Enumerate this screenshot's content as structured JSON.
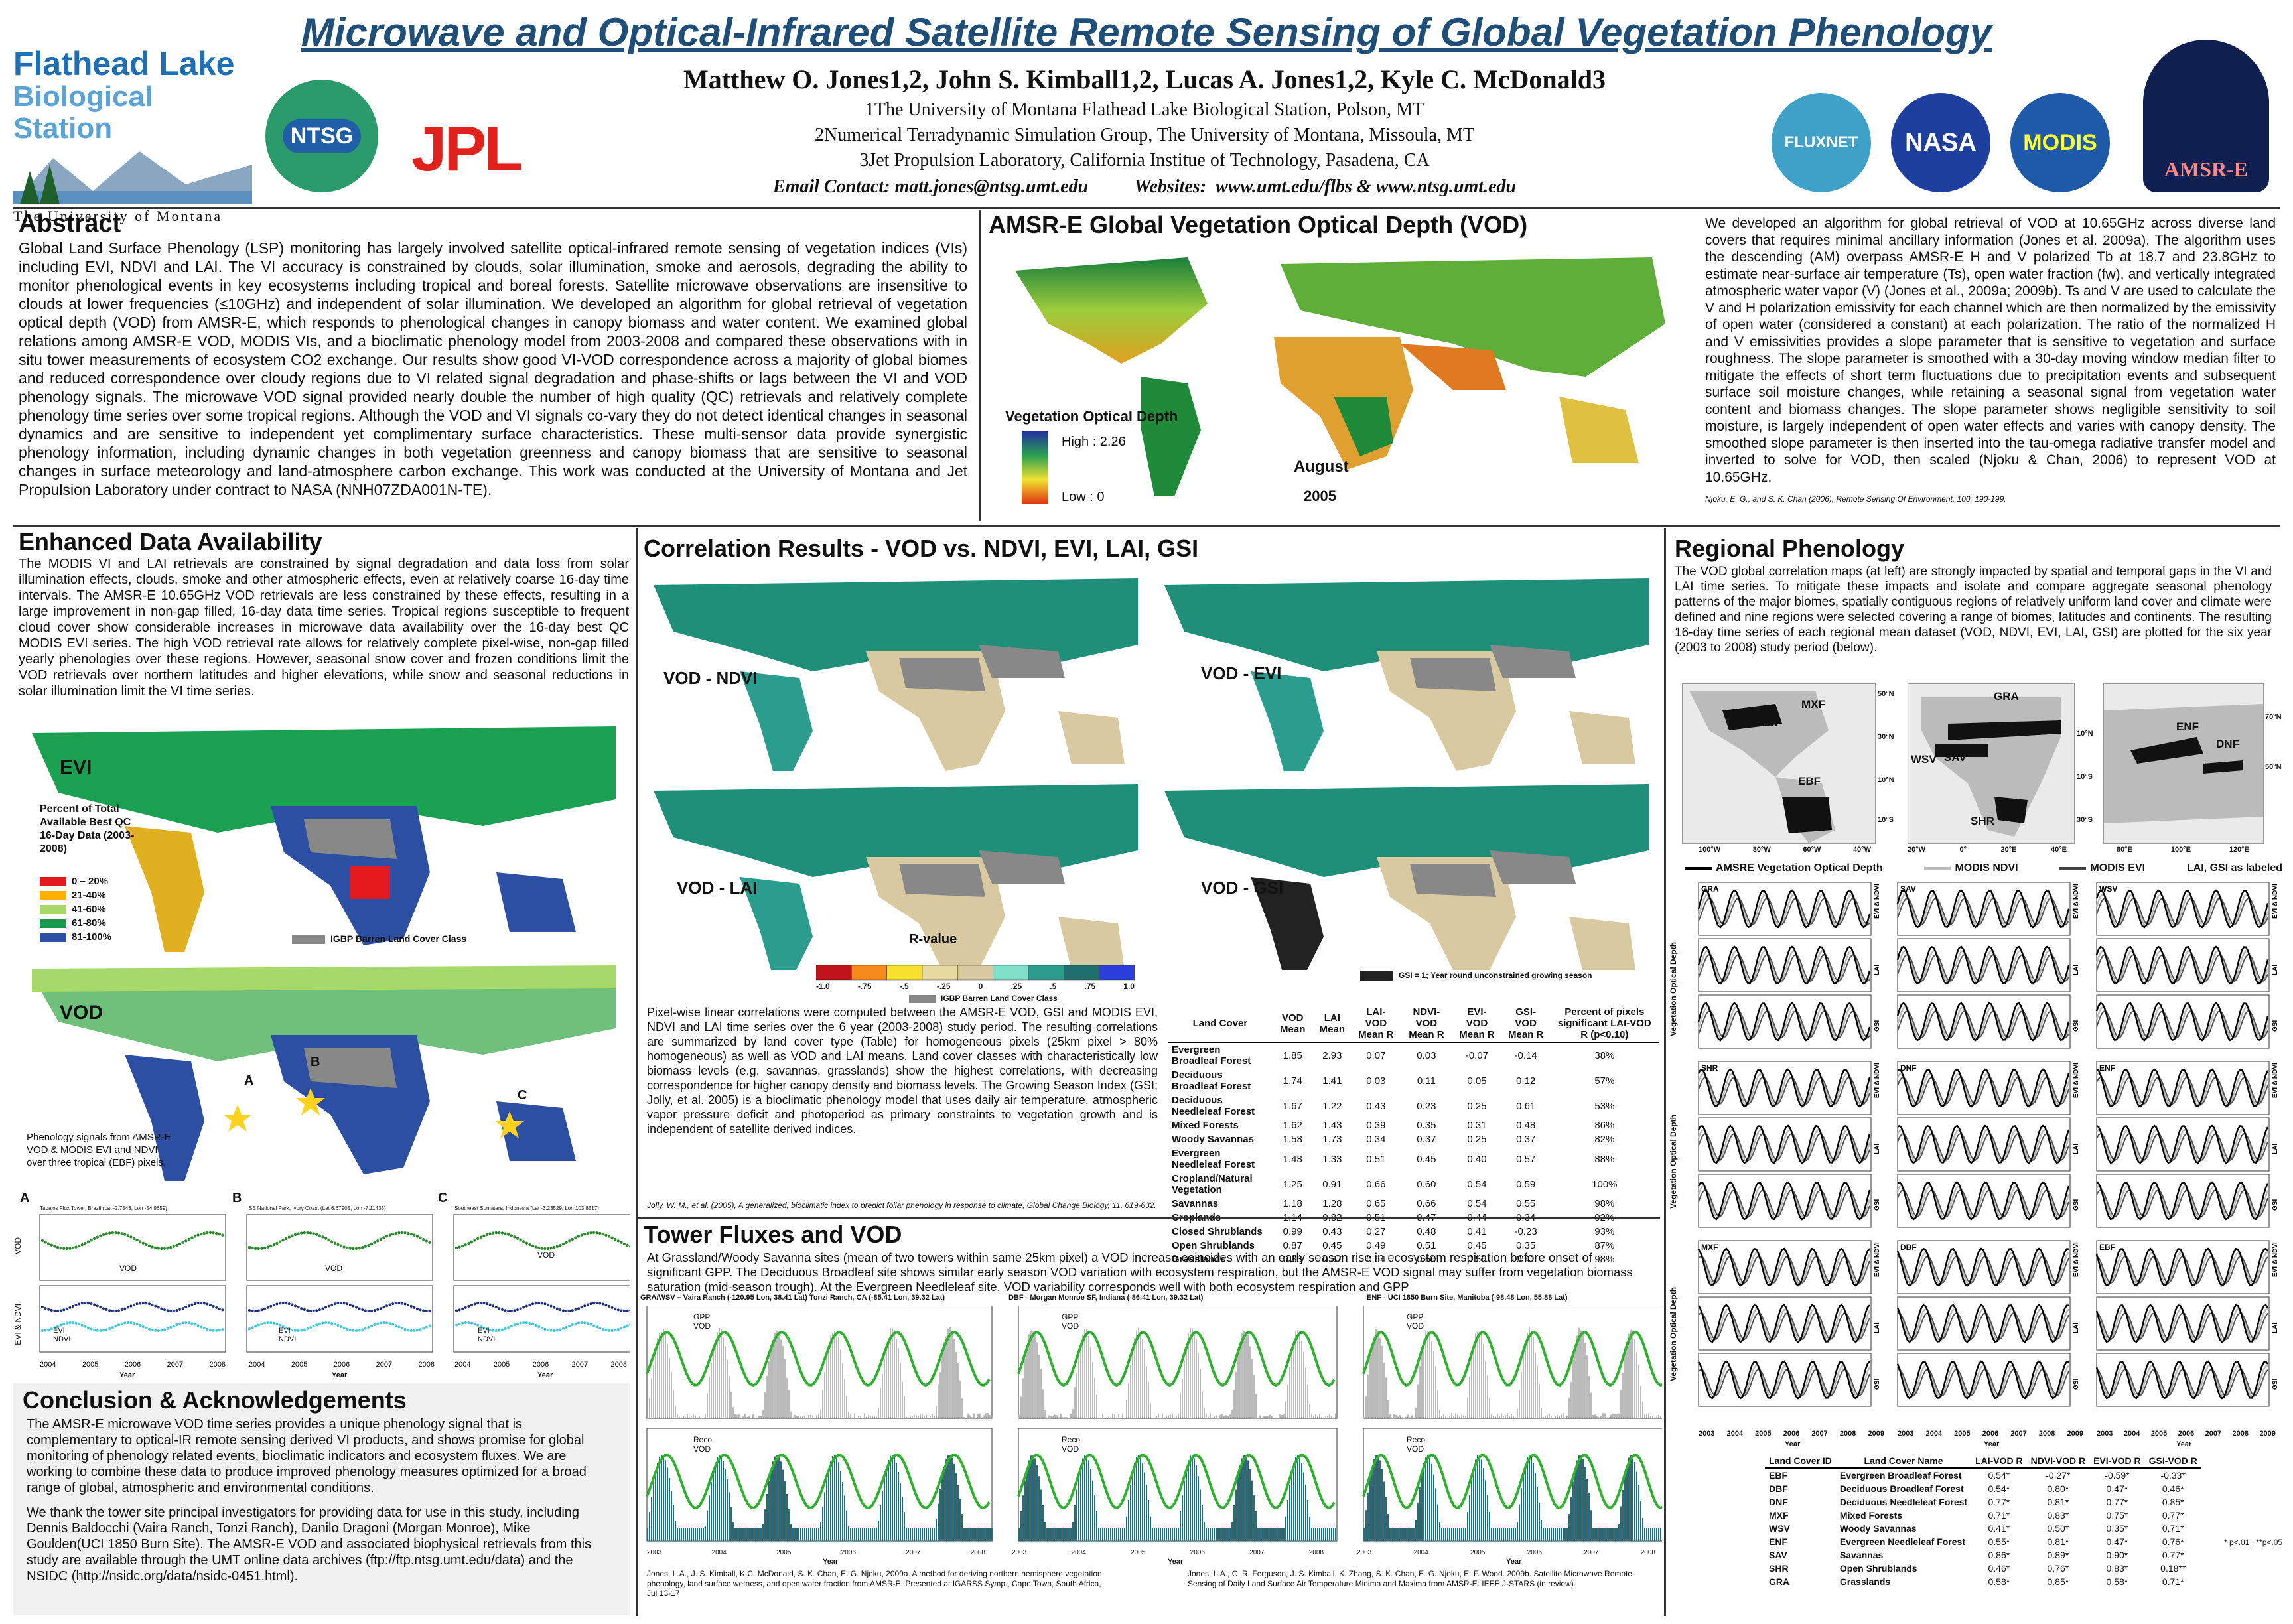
{
  "header": {
    "title": "Microwave and Optical-Infrared Satellite Remote Sensing of Global Vegetation Phenology",
    "authors": "Matthew O. Jones1,2, John S. Kimball1,2, Lucas A. Jones1,2, Kyle C. McDonald3",
    "affil1": "1The University of Montana Flathead Lake Biological Station, Polson, MT",
    "affil2": "2Numerical Terradynamic Simulation Group, The University of Montana, Missoula, MT",
    "affil3": "3Jet Propulsion Laboratory, California Institue of Technology, Pasadena, CA",
    "contact": "Email Contact: matt.jones@ntsg.umt.edu          Websites:  www.umt.edu/flbs & www.ntsg.umt.edu"
  },
  "logos": {
    "flathead_line1": "Flathead Lake",
    "flathead_line2": "Biological Station",
    "flathead_line3": "The University of Montana",
    "ntsg": "NTSG",
    "jpl": "JPL",
    "fluxnet": "FLUXNET",
    "nasa": "NASA",
    "modis": "MODIS",
    "amsre": "AMSR-E"
  },
  "abstract": {
    "title": "Abstract",
    "text": "Global Land Surface Phenology (LSP) monitoring has largely involved satellite optical-infrared remote sensing of vegetation indices (VIs) including EVI, NDVI and LAI. The VI accuracy is constrained by clouds, solar illumination, smoke and aerosols, degrading the ability to monitor phenological events in key ecosystems including tropical and boreal forests. Satellite microwave observations are insensitive to clouds at lower frequencies (≤10GHz) and independent of solar illumination. We developed an algorithm for global retrieval of vegetation optical depth (VOD) from AMSR-E, which responds to phenological changes in canopy biomass and water content. We examined global relations among AMSR-E VOD, MODIS VIs, and a bioclimatic phenology model from 2003-2008 and compared these observations with in situ tower measurements of ecosystem CO2 exchange. Our results show good VI-VOD correspondence across a majority of global biomes and reduced correspondence over cloudy regions due to VI related signal degradation and phase-shifts or lags between the VI and VOD phenology signals. The microwave VOD signal provided nearly double the number of high quality (QC) retrievals and relatively complete phenology time series over some tropical regions. Although the VOD and VI signals co-vary they do not detect identical changes in seasonal dynamics and are sensitive to independent yet complimentary surface characteristics. These multi-sensor data provide synergistic phenology information, including dynamic changes in both vegetation greenness and canopy biomass that are sensitive to seasonal changes in surface meteorology and land-atmosphere carbon exchange. This work was conducted at the University of Montana and Jet Propulsion Laboratory under contract to NASA (NNH07ZDA001N-TE)."
  },
  "vod_map": {
    "title": "AMSR-E Global Vegetation Optical Depth (VOD)",
    "legend_title": "Vegetation Optical Depth",
    "high": "High : 2.26",
    "low": "Low : 0",
    "month": "August",
    "year": "2005"
  },
  "algorithm": {
    "text": "We developed an algorithm for global retrieval of VOD at 10.65GHz across diverse land covers that requires minimal ancillary information (Jones et al. 2009a). The algorithm uses the descending (AM) overpass AMSR-E H and V polarized Tb at 18.7 and 23.8GHz to estimate near-surface air temperature (Ts), open water fraction (fw), and vertically integrated atmospheric water vapor (V) (Jones et al., 2009a; 2009b). Ts and V are used to calculate the V and H polarization emissivity for each channel which are then normalized by the emissivity of open water (considered a constant) at each polarization. The ratio of the normalized H and V emissivities provides a slope parameter that is sensitive to vegetation and surface roughness. The slope parameter is smoothed with a 30-day moving window median filter to mitigate the effects of short term fluctuations due to precipitation events and subsequent surface soil moisture changes, while retaining a seasonal signal from vegetation water content and biomass changes. The slope parameter shows negligible sensitivity to soil moisture, is largely independent of open water effects and varies with canopy density. The smoothed slope parameter is then inserted into the tau-omega radiative transfer model and inverted to solve for VOD, then scaled (Njoku & Chan, 2006) to represent VOD at 10.65GHz.",
    "ref": "Njoku, E. G., and S. K. Chan (2006), Remote Sensing Of Environment, 100, 190-199."
  },
  "enhanced": {
    "title": "Enhanced Data Availability",
    "text": "The MODIS VI and LAI retrievals are constrained by signal degradation and data loss from solar illumination effects, clouds, smoke and other atmospheric effects, even at relatively coarse 16-day time intervals. The AMSR-E 10.65GHz VOD retrievals are less constrained by these effects, resulting in a large improvement in non-gap filled, 16-day data time series. Tropical regions susceptible to frequent cloud cover show considerable increases in microwave data availability over the 16-day best QC MODIS EVI series. The high VOD retrieval rate allows for relatively complete pixel-wise, non-gap filled yearly phenologies over these regions. However, seasonal snow cover and frozen conditions limit the VOD retrievals over northern latitudes and higher elevations, while snow and seasonal reductions in solar illumination limit the VI time series.",
    "evi_label": "EVI",
    "vod_label": "VOD",
    "legend_title": "Percent of Total Available Best QC 16-Day Data (2003-2008)",
    "legend_items": [
      {
        "label": "0 – 20%",
        "color": "#e41a1c"
      },
      {
        "label": "21-40%",
        "color": "#ffb000"
      },
      {
        "label": "41-60%",
        "color": "#a6d96a"
      },
      {
        "label": "61-80%",
        "color": "#1a9850"
      },
      {
        "label": "81-100%",
        "color": "#2c4fa3"
      }
    ],
    "barren": "IGBP Barren Land Cover Class",
    "pheno_note": "Phenology signals from AMSR-E VOD & MODIS EVI and NDVI over three tropical (EBF) pixels.",
    "site_a": "A",
    "site_b": "B",
    "site_c": "C",
    "site_a_title": "Tapajos Flux Tower, Brazil (Lat -2.7543, Lon -54.9659)",
    "site_b_title": "SE National Park, Ivory Coast (Lat 6.67905, Lon -7.11433)",
    "site_c_title": "Southeast Sumatera, Indonesia (Lat -3.23529, Lon 103.8517)",
    "years": [
      "2004",
      "2005",
      "2006",
      "2007",
      "2008"
    ],
    "year_label": "Year",
    "vod_axis": "VOD",
    "vi_axis": "EVI & NDVI",
    "vod_series": "VOD",
    "evi_series": "EVI",
    "ndvi_series": "NDVI"
  },
  "correlation": {
    "title": "Correlation Results - VOD vs. NDVI, EVI, LAI, GSI",
    "labels": [
      "VOD - NDVI",
      "VOD - EVI",
      "VOD - LAI",
      "VOD - GSI"
    ],
    "rvalue": "R-value",
    "ticks": [
      "-1.0",
      "-.75",
      "-.5",
      "-.25",
      "0",
      ".25",
      ".5",
      ".75",
      "1.0"
    ],
    "colors": [
      "#c0141a",
      "#f78a1d",
      "#f7e12e",
      "#e8d9a0",
      "#d8c9a0",
      "#7ee0c8",
      "#2a9d8f",
      "#1f6f6f",
      "#2b3fdc"
    ],
    "barren": "IGBP Barren Land Cover Class",
    "gsi_note": "GSI = 1; Year round unconstrained growing season",
    "text": "Pixel-wise linear correlations were computed between the AMSR-E VOD, GSI and MODIS EVI, NDVI and LAI time series over the 6 year (2003-2008) study period. The resulting correlations are summarized by land cover type (Table) for homogeneous pixels (25km pixel > 80% homogeneous) as well as VOD and LAI means. Land cover classes with characteristically low biomass levels (e.g. savannas, grasslands) show the highest correlations, with decreasing correspondence for higher canopy density and biomass levels. The Growing Season Index (GSI; Jolly, et al. 2005) is a bioclimatic phenology model that uses daily air temperature, atmospheric vapor pressure deficit and photoperiod as primary constraints to vegetation growth and is independent of satellite derived indices.",
    "ref": "Jolly, W. M., et al. (2005), A generalized, bioclimatic index to predict foliar phenology in response to climate, Global Change Biology, 11, 619-632.",
    "table_headers": [
      "Land Cover",
      "VOD Mean",
      "LAI Mean",
      "LAI-VOD Mean R",
      "NDVI-VOD Mean R",
      "EVI-VOD Mean R",
      "GSI-VOD Mean R",
      "Percent of pixels significant LAI-VOD R (p<0.10)"
    ],
    "table_rows": [
      [
        "Evergreen Broadleaf Forest",
        "1.85",
        "2.93",
        "0.07",
        "0.03",
        "-0.07",
        "-0.14",
        "38%"
      ],
      [
        "Deciduous Broadleaf Forest",
        "1.74",
        "1.41",
        "0.03",
        "0.11",
        "0.05",
        "0.12",
        "57%"
      ],
      [
        "Deciduous Needleleaf Forest",
        "1.67",
        "1.22",
        "0.43",
        "0.23",
        "0.25",
        "0.61",
        "53%"
      ],
      [
        "Mixed Forests",
        "1.62",
        "1.43",
        "0.39",
        "0.35",
        "0.31",
        "0.48",
        "86%"
      ],
      [
        "Woody Savannas",
        "1.58",
        "1.73",
        "0.34",
        "0.37",
        "0.25",
        "0.37",
        "82%"
      ],
      [
        "Evergreen Needleleaf Forest",
        "1.48",
        "1.33",
        "0.51",
        "0.45",
        "0.40",
        "0.57",
        "88%"
      ],
      [
        "Cropland/Natural Vegetation",
        "1.25",
        "0.91",
        "0.66",
        "0.60",
        "0.54",
        "0.59",
        "100%"
      ],
      [
        "Savannas",
        "1.18",
        "1.28",
        "0.65",
        "0.66",
        "0.54",
        "0.55",
        "98%"
      ],
      [
        "Croplands",
        "1.14",
        "0.82",
        "0.51",
        "0.47",
        "0.44",
        "0.34",
        "92%"
      ],
      [
        "Closed Shrublands",
        "0.99",
        "0.43",
        "0.27",
        "0.48",
        "0.41",
        "-0.23",
        "93%"
      ],
      [
        "Open Shrublands",
        "0.87",
        "0.45",
        "0.49",
        "0.51",
        "0.45",
        "0.35",
        "87%"
      ],
      [
        "Grasslands",
        "0.83",
        "0.37",
        "0.64",
        "0.50",
        "0.56",
        "0.41",
        "98%"
      ]
    ]
  },
  "tower": {
    "title": "Tower Fluxes and VOD",
    "text": "At Grassland/Woody Savanna sites (mean of two towers within same 25km pixel) a VOD increase coincides with an early season rise in ecosystem respiration before onset of significant GPP. The Deciduous Broadleaf site shows similar early season VOD variation with ecosystem respiration, but the AMSR-E VOD signal may suffer from vegetation biomass saturation (mid-season trough). At the Evergreen Needleleaf site, VOD variability corresponds well with both ecosystem respiration and GPP",
    "site1": "GRA/WSV – Vaira Ranch (-120.95 Lon, 38.41 Lat) Tonzi Ranch, CA (-85.41 Lon, 39.32 Lat)",
    "site2": "DBF - Morgan Monroe SF, Indiana (-86.41 Lon, 39.32 Lat)",
    "site3": "ENF - UCI 1850 Burn Site, Manitoba (-98.48 Lon, 55.88 Lat)",
    "gpp": "GPP",
    "reco": "Reco",
    "vod": "VOD",
    "year_label": "Year",
    "years": [
      "2003",
      "2004",
      "2005",
      "2006",
      "2007",
      "2008"
    ],
    "ref1": "Jones, L.A., J. S. Kimball, K.C. McDonald, S. K. Chan, E. G. Njoku, 2009a. A method for deriving northern hemisphere vegetation phenology, land surface wetness, and open water fraction from AMSR-E. Presented at IGARSS Symp., Cape Town, South Africa, Jul 13-17",
    "ref2": "Jones, L.A., C. R. Ferguson, J. S. Kimball, K. Zhang, S. K. Chan, E. G. Njoku, E. F. Wood. 2009b. Satellite Microwave Remote Sensing of Daily Land Surface Air Temperature Minima and Maxima from AMSR-E. IEEE J-STARS (in review)."
  },
  "conclusion": {
    "title": "Conclusion & Acknowledgements",
    "p1": "The AMSR-E microwave VOD time series provides a unique phenology signal that is complementary to optical-IR remote sensing derived VI products, and shows promise for global monitoring of phenology related events, bioclimatic indicators and ecosystem fluxes. We are working to combine these data to produce improved phenology measures optimized for a broad range of global, atmospheric and environmental conditions.",
    "p2": "We thank the tower site principal investigators for providing data for use in this study, including Dennis Baldocchi (Vaira Ranch, Tonzi Ranch), Danilo Dragoni (Morgan Monroe), Mike Goulden(UCI 1850 Burn Site). The AMSR-E VOD and associated biophysical retrievals from this study are available through the UMT online data archives (ftp://ftp.ntsg.umt.edu/data) and the NSIDC (http://nsidc.org/data/nsidc-0451.html)."
  },
  "regional": {
    "title": "Regional Phenology",
    "text": "The VOD global correlation maps (at left) are strongly impacted by spatial and temporal gaps in the VI and LAI time series. To mitigate these impacts and isolate and compare aggregate seasonal phenology patterns of the major biomes, spatially contiguous regions of relatively uniform land cover and climate were defined and nine regions were selected covering a range of biomes, latitudes and continents. The resulting 16-day time series of each regional mean dataset (VOD, NDVI, EVI, LAI, GSI) are plotted for the six year (2003 to 2008) study period (below).",
    "map1_labels": [
      "MXF",
      "DBF",
      "EBF"
    ],
    "map2_labels": [
      "GRA",
      "WSV",
      "SAV",
      "SHR"
    ],
    "map3_labels": [
      "ENF",
      "DNF"
    ],
    "map1_lon": [
      "100°W",
      "80°W",
      "60°W",
      "40°W"
    ],
    "map1_lat": [
      "50°N",
      "30°N",
      "10°N",
      "10°S"
    ],
    "map2_lon": [
      "20°W",
      "0°",
      "20°E",
      "40°E"
    ],
    "map2_lat": [
      "10°N",
      "10°S",
      "30°S"
    ],
    "map3_lon": [
      "80°E",
      "100°E",
      "120°E"
    ],
    "map3_lat": [
      "70°N",
      "50°N"
    ],
    "legend": [
      "AMSRE Vegetation Optical Depth",
      "MODIS NDVI",
      "MODIS EVI",
      "LAI, GSI as labeled"
    ],
    "panels": [
      "GRA",
      "SAV",
      "WSV",
      "SHR",
      "DNF",
      "ENF",
      "MXF",
      "DBF",
      "EBF"
    ],
    "row_axes": [
      "EVI & NDVI",
      "LAI",
      "GSI"
    ],
    "left_axis": "Vegetation Optical Depth",
    "year_label": "Year",
    "years": [
      "2003",
      "2004",
      "2005",
      "2006",
      "2007",
      "2008",
      "2009"
    ],
    "table_headers": [
      "Land Cover ID",
      "Land Cover Name",
      "LAI-VOD R",
      "NDVI-VOD R",
      "EVI-VOD R",
      "GSI-VOD R"
    ],
    "table_rows": [
      [
        "EBF",
        "Evergreen Broadleaf Forest",
        "0.54*",
        "-0.27*",
        "-0.59*",
        "-0.33*"
      ],
      [
        "DBF",
        "Deciduous Broadleaf Forest",
        "0.54*",
        "0.80*",
        "0.47*",
        "0.46*"
      ],
      [
        "DNF",
        "Deciduous Needleleaf Forest",
        "0.77*",
        "0.81*",
        "0.77*",
        "0.85*"
      ],
      [
        "MXF",
        "Mixed Forests",
        "0.71*",
        "0.83*",
        "0.75*",
        "0.77*"
      ],
      [
        "WSV",
        "Woody Savannas",
        "0.41*",
        "0.50*",
        "0.35*",
        "0.71*"
      ],
      [
        "ENF",
        "Evergreen Needleleaf Forest",
        "0.55*",
        "0.81*",
        "0.47*",
        "0.76*"
      ],
      [
        "SAV",
        "Savannas",
        "0.86*",
        "0.89*",
        "0.90*",
        "0.77*"
      ],
      [
        "SHR",
        "Open Shrublands",
        "0.46*",
        "0.76*",
        "0.83*",
        "0.18**"
      ],
      [
        "GRA",
        "Grasslands",
        "0.58*",
        "0.85*",
        "0.58*",
        "0.71*"
      ]
    ],
    "sig_note": "* p<.01 ; **p<.05"
  }
}
